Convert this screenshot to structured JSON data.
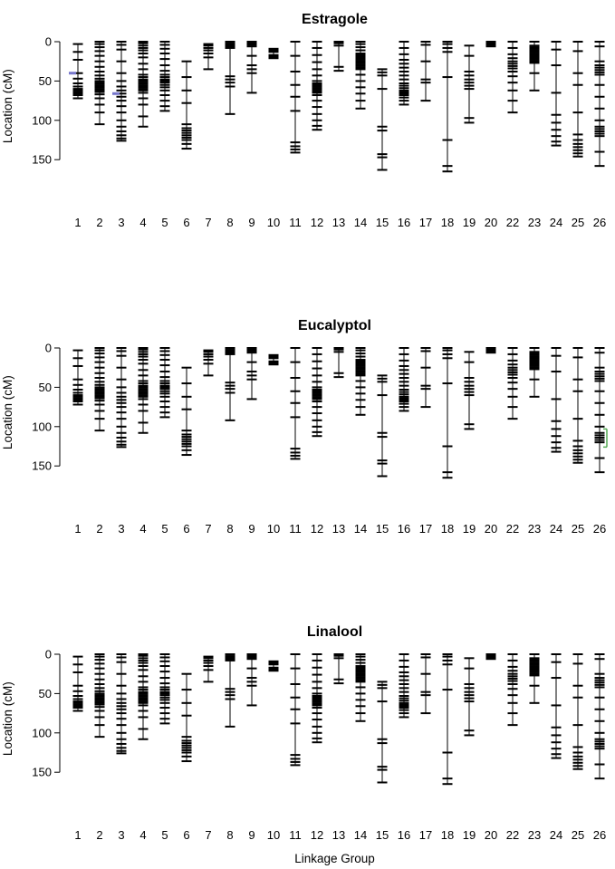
{
  "page": {
    "background": "#ffffff"
  },
  "chart_data": {
    "type": "linkage-map",
    "n_panels": 3,
    "ylabel": "Location (cM)",
    "xlabel": "Linkage Group",
    "y_ticks": [
      0,
      50,
      100,
      150
    ],
    "ylim": [
      0,
      168
    ],
    "axis_color": "#000000",
    "marker_color": "#000000",
    "panels": [
      {
        "title": "Estragole",
        "annotations": [
          {
            "group": "1",
            "position": 40,
            "shape": "tick",
            "side": "left",
            "color": "#7777cc"
          },
          {
            "group": "3",
            "position": 66,
            "shape": "tick",
            "side": "left",
            "color": "#7777cc"
          }
        ]
      },
      {
        "title": "Eucalyptol",
        "annotations": [
          {
            "group": "26",
            "from": 103,
            "to": 126,
            "shape": "bracket",
            "side": "right",
            "color": "#55aa55"
          }
        ]
      },
      {
        "title": "Linalool",
        "annotations": []
      }
    ],
    "groups": [
      {
        "id": "1",
        "markers": [
          3,
          13,
          23,
          40,
          47,
          53,
          57,
          60,
          62,
          64,
          66,
          68,
          72
        ]
      },
      {
        "id": "2",
        "markers": [
          0,
          3,
          7,
          12,
          18,
          25,
          32,
          38,
          43,
          47,
          50,
          52,
          54,
          56,
          58,
          60,
          62,
          64,
          67,
          72,
          80,
          90,
          105
        ]
      },
      {
        "id": "3",
        "markers": [
          0,
          4,
          10,
          25,
          40,
          50,
          57,
          62,
          66,
          70,
          75,
          82,
          90,
          100,
          108,
          114,
          119,
          123,
          126
        ]
      },
      {
        "id": "4",
        "markers": [
          0,
          2,
          5,
          8,
          11,
          15,
          20,
          28,
          35,
          42,
          45,
          48,
          50,
          52,
          54,
          56,
          58,
          60,
          62,
          65,
          72,
          80,
          95,
          108
        ]
      },
      {
        "id": "5",
        "markers": [
          0,
          4,
          9,
          15,
          22,
          30,
          37,
          42,
          45,
          48,
          50,
          52,
          55,
          58,
          62,
          68,
          75,
          82,
          88
        ]
      },
      {
        "id": "6",
        "markers": [
          25,
          45,
          62,
          78,
          105,
          110,
          113,
          116,
          119,
          122,
          125,
          130,
          136
        ]
      },
      {
        "id": "7",
        "markers": [
          3,
          5,
          8,
          11,
          15,
          20,
          35
        ]
      },
      {
        "id": "8",
        "markers": [
          0,
          1,
          3,
          4,
          5,
          6,
          8,
          44,
          48,
          52,
          57,
          92
        ]
      },
      {
        "id": "9",
        "markers": [
          0,
          2,
          4,
          6,
          18,
          30,
          35,
          40,
          65
        ]
      },
      {
        "id": "10",
        "markers": [
          9,
          10,
          11,
          12,
          13,
          17,
          18,
          19,
          20,
          21
        ]
      },
      {
        "id": "11",
        "markers": [
          0,
          18,
          38,
          55,
          70,
          88,
          128,
          133,
          137,
          141
        ]
      },
      {
        "id": "12",
        "markers": [
          0,
          8,
          17,
          26,
          35,
          43,
          50,
          53,
          55,
          57,
          59,
          61,
          63,
          65,
          68,
          75,
          83,
          92,
          100,
          107,
          112
        ]
      },
      {
        "id": "13",
        "markers": [
          0,
          2,
          5,
          32,
          37
        ]
      },
      {
        "id": "14",
        "markers": [
          0,
          3,
          7,
          11,
          15,
          17,
          19,
          21,
          23,
          25,
          27,
          29,
          31,
          33,
          35,
          42,
          50,
          58,
          66,
          75,
          85
        ]
      },
      {
        "id": "15",
        "markers": [
          35,
          39,
          43,
          60,
          108,
          113,
          143,
          147,
          163
        ]
      },
      {
        "id": "16",
        "markers": [
          0,
          8,
          16,
          23,
          28,
          33,
          38,
          43,
          48,
          53,
          56,
          59,
          62,
          64,
          66,
          68,
          71,
          75,
          80
        ]
      },
      {
        "id": "17",
        "markers": [
          0,
          4,
          25,
          48,
          52,
          75
        ]
      },
      {
        "id": "18",
        "markers": [
          0,
          3,
          8,
          13,
          45,
          125,
          158,
          165
        ]
      },
      {
        "id": "19",
        "markers": [
          5,
          18,
          38,
          43,
          48,
          52,
          56,
          60,
          97,
          103
        ]
      },
      {
        "id": "20",
        "markers": [
          0,
          2,
          4,
          6
        ]
      },
      {
        "id": "22",
        "markers": [
          0,
          8,
          16,
          21,
          25,
          28,
          31,
          34,
          38,
          44,
          52,
          62,
          75,
          90
        ]
      },
      {
        "id": "23",
        "markers": [
          0,
          5,
          7,
          9,
          11,
          13,
          15,
          17,
          19,
          21,
          23,
          25,
          27,
          40,
          62
        ]
      },
      {
        "id": "24",
        "markers": [
          0,
          10,
          30,
          65,
          93,
          103,
          112,
          120,
          127,
          132
        ]
      },
      {
        "id": "25",
        "markers": [
          0,
          12,
          40,
          55,
          90,
          118,
          125,
          130,
          134,
          138,
          142,
          146
        ]
      },
      {
        "id": "26",
        "markers": [
          0,
          6,
          25,
          30,
          33,
          36,
          39,
          42,
          55,
          70,
          85,
          100,
          108,
          111,
          114,
          117,
          120,
          140,
          158
        ]
      }
    ]
  }
}
